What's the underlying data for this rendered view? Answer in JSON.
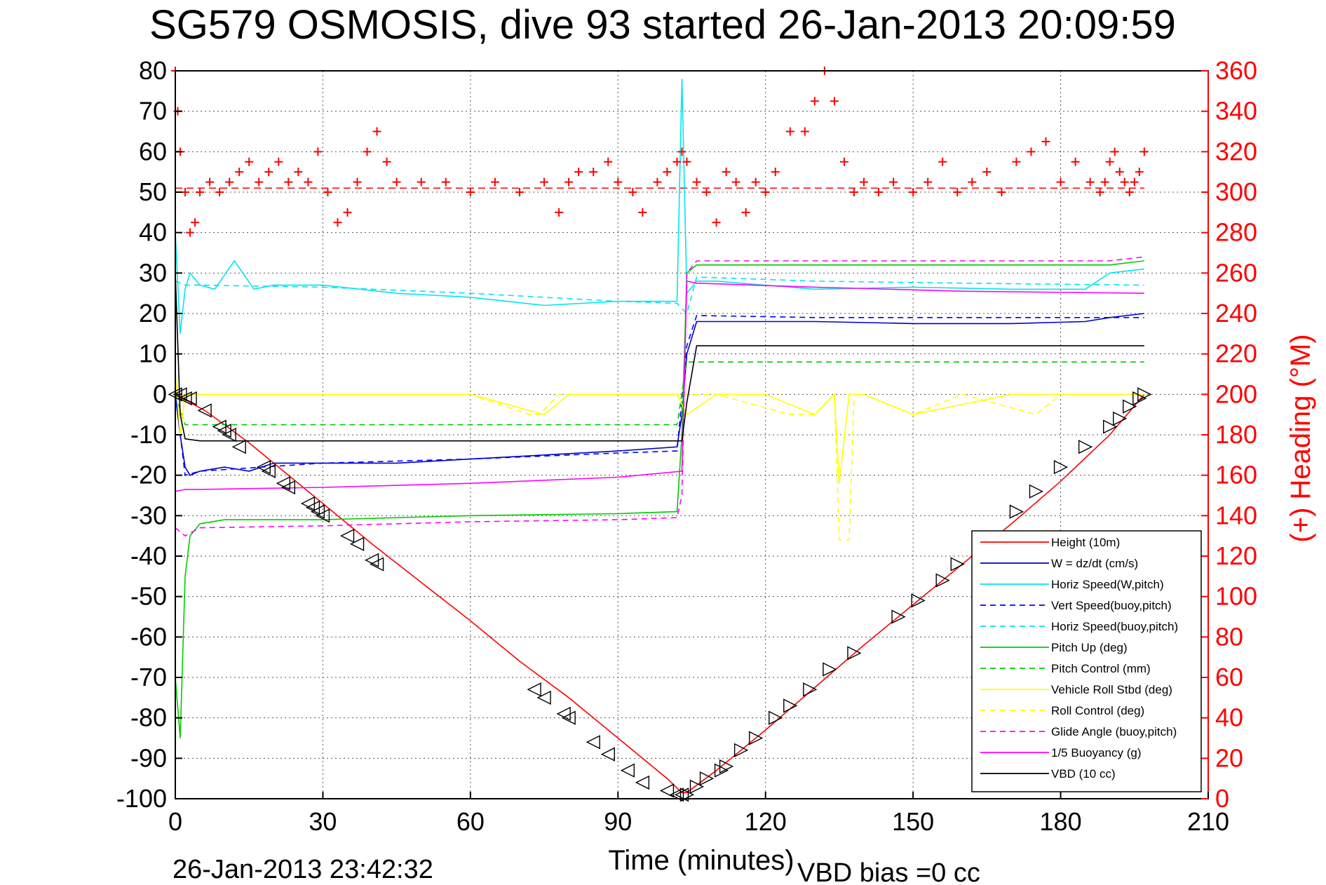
{
  "chart_data": {
    "type": "line",
    "title": "SG579 OSMOSIS, dive 93 started 26-Jan-2013 20:09:59",
    "xlabel": "Time (minutes)",
    "ylabel_right": "(+) Heading (°M)",
    "footer_left": "26-Jan-2013 23:42:32",
    "footer_right": "VBD bias =0 cc",
    "xlim": [
      0,
      210
    ],
    "ylim": [
      -100,
      80
    ],
    "ylim_right": [
      0,
      360
    ],
    "x_ticks": [
      "0",
      "30",
      "60",
      "90",
      "120",
      "150",
      "180",
      "210"
    ],
    "y_ticks": [
      "80",
      "70",
      "60",
      "50",
      "40",
      "30",
      "20",
      "10",
      "0",
      "-10",
      "-20",
      "-30",
      "-40",
      "-50",
      "-60",
      "-70",
      "-80",
      "-90",
      "-100"
    ],
    "y_ticks_right": [
      "360",
      "340",
      "320",
      "300",
      "280",
      "260",
      "240",
      "220",
      "200",
      "180",
      "160",
      "140",
      "120",
      "100",
      "80",
      "60",
      "40",
      "20",
      "0"
    ],
    "grid": true,
    "legend_position": "bottom-right",
    "colors": {
      "red": "#ff0000",
      "blue": "#0000cc",
      "cyan": "#00e5ee",
      "green": "#00cc00",
      "yellow": "#ffff00",
      "magenta": "#ff00ff",
      "black": "#000000"
    },
    "series": [
      {
        "name": "Height (10m)",
        "color": "#ff0000",
        "dash": false,
        "x": [
          0,
          1,
          3,
          6,
          10,
          15,
          20,
          25,
          30,
          40,
          50,
          60,
          70,
          80,
          90,
          100,
          103,
          104,
          110,
          120,
          130,
          140,
          150,
          160,
          170,
          180,
          190,
          197
        ],
        "y": [
          0,
          -0.5,
          -2,
          -4,
          -7.5,
          -12,
          -17,
          -22,
          -27,
          -37,
          -46.5,
          -56,
          -66,
          -75,
          -85,
          -95,
          -98.5,
          -98.5,
          -93,
          -83,
          -72.5,
          -62,
          -52,
          -42,
          -32,
          -21.5,
          -10,
          0
        ]
      },
      {
        "name": "W = dz/dt (cm/s)",
        "color": "#0000cc",
        "dash": false,
        "x": [
          0,
          1,
          2,
          3,
          5,
          10,
          15,
          20,
          30,
          45,
          60,
          75,
          90,
          102,
          103,
          104,
          106,
          110,
          130,
          150,
          170,
          185,
          190,
          197
        ],
        "y": [
          0,
          -10,
          -18,
          -20,
          -19,
          -18,
          -19,
          -17,
          -17,
          -17,
          -16,
          -15,
          -14,
          -13,
          -5,
          10,
          18,
          18,
          18,
          17.5,
          17.5,
          18,
          19,
          20
        ]
      },
      {
        "name": "Horiz Speed(W,pitch)",
        "color": "#00e5ee",
        "dash": false,
        "x": [
          0,
          1,
          2,
          3,
          5,
          8,
          12,
          16,
          20,
          30,
          45,
          60,
          75,
          90,
          102,
          103,
          104,
          106,
          110,
          130,
          150,
          170,
          185,
          190,
          197
        ],
        "y": [
          40,
          15,
          26,
          30,
          27,
          26,
          33,
          26,
          27,
          27,
          25,
          24,
          22,
          23,
          23,
          78,
          25,
          28,
          28,
          26,
          26.5,
          26,
          26,
          30,
          31
        ]
      },
      {
        "name": "Vert Speed(buoy,pitch)",
        "color": "#0000ff",
        "dash": true,
        "x": [
          0,
          2,
          5,
          30,
          60,
          90,
          102,
          104,
          106,
          130,
          160,
          197
        ],
        "y": [
          0,
          -20,
          -19,
          -17,
          -16,
          -14.5,
          -14,
          12,
          19.5,
          19,
          19,
          19
        ]
      },
      {
        "name": "Horiz Speed(buoy,pitch)",
        "color": "#00e5ee",
        "dash": true,
        "x": [
          0,
          2,
          5,
          30,
          60,
          90,
          102,
          104,
          106,
          130,
          160,
          197
        ],
        "y": [
          28,
          27,
          27,
          26.5,
          25,
          23,
          22.5,
          20,
          29,
          28,
          27.5,
          27
        ]
      },
      {
        "name": "Pitch Up (deg)",
        "color": "#00cc00",
        "dash": false,
        "x": [
          0,
          1,
          2,
          3,
          5,
          10,
          20,
          30,
          60,
          90,
          102,
          103,
          104,
          106,
          130,
          160,
          190,
          197
        ],
        "y": [
          -70,
          -85,
          -45,
          -35,
          -32,
          -31,
          -31,
          -31,
          -30,
          -29.5,
          -29,
          -10,
          30,
          32,
          32,
          32,
          32,
          33
        ]
      },
      {
        "name": "Pitch Control (mm)",
        "color": "#00cc00",
        "dash": true,
        "x": [
          0,
          2,
          5,
          60,
          102,
          104,
          106,
          197
        ],
        "y": [
          0,
          -7.5,
          -7.5,
          -7.5,
          -7.5,
          8,
          8,
          8
        ]
      },
      {
        "name": "Vehicle Roll Stbd (deg)",
        "color": "#ffff00",
        "dash": false,
        "x": [
          0,
          1,
          2,
          5,
          10,
          20,
          30,
          40,
          60,
          75,
          80,
          90,
          100,
          102,
          104,
          110,
          120,
          130,
          134,
          135,
          137,
          140,
          150,
          170,
          190,
          197
        ],
        "y": [
          5,
          -10,
          0,
          0,
          0,
          0,
          0,
          0,
          0,
          -5,
          0,
          0,
          0,
          0,
          -5,
          0,
          0,
          -5,
          0,
          -22,
          0,
          0,
          -5,
          0,
          0,
          0
        ]
      },
      {
        "name": "Roll Control (deg)",
        "color": "#ffff00",
        "dash": true,
        "x": [
          0,
          2,
          10,
          20,
          30,
          40,
          60,
          72,
          74,
          78,
          80,
          90,
          102,
          104,
          110,
          125,
          130,
          134,
          135,
          137,
          138,
          140,
          150,
          160,
          175,
          180,
          190,
          197
        ],
        "y": [
          0,
          0,
          0,
          0,
          0,
          0,
          0,
          -5,
          -5,
          0,
          0,
          0,
          0,
          0,
          0,
          -5,
          -5,
          0,
          -36,
          -36,
          0,
          0,
          -5,
          0,
          -5,
          0,
          0,
          0
        ]
      },
      {
        "name": "Glide Angle (buoy,pitch)",
        "color": "#ff00ff",
        "dash": true,
        "x": [
          0,
          2,
          5,
          30,
          60,
          90,
          102,
          103,
          104,
          106,
          130,
          160,
          190,
          197
        ],
        "y": [
          -33,
          -35,
          -33,
          -32.5,
          -31.5,
          -31,
          -30.5,
          -25,
          30,
          33,
          33,
          33,
          33,
          34
        ]
      },
      {
        "name": "1/5 Buoyancy (g)",
        "color": "#ff00ff",
        "dash": false,
        "x": [
          0,
          2,
          5,
          30,
          60,
          90,
          103,
          104,
          106,
          130,
          160,
          197
        ],
        "y": [
          -24,
          -23.5,
          -23.5,
          -23,
          -22,
          -20.5,
          -19,
          28,
          27.5,
          26.5,
          25.5,
          25
        ]
      },
      {
        "name": "VBD (10 cc)",
        "color": "#000000",
        "dash": false,
        "x": [
          0,
          1,
          2,
          5,
          30,
          60,
          90,
          103,
          104,
          106,
          130,
          197
        ],
        "y": [
          30,
          -5,
          -11,
          -11.5,
          -11.5,
          -11.5,
          -11.5,
          -11.5,
          -2,
          12,
          12,
          12
        ]
      }
    ],
    "heading_series": {
      "name": "Heading",
      "axis": "right",
      "color": "#ff0000",
      "marker": "+",
      "x": [
        0,
        0.5,
        1,
        2,
        3,
        4,
        5,
        7,
        9,
        11,
        13,
        15,
        17,
        19,
        21,
        23,
        25,
        27,
        29,
        31,
        33,
        35,
        37,
        39,
        41,
        43,
        45,
        50,
        55,
        60,
        65,
        70,
        75,
        78,
        80,
        82,
        85,
        88,
        90,
        93,
        95,
        98,
        100,
        102,
        103,
        104,
        106,
        108,
        110,
        112,
        114,
        116,
        118,
        120,
        122,
        125,
        128,
        130,
        132,
        134,
        136,
        138,
        140,
        143,
        146,
        150,
        153,
        156,
        159,
        162,
        165,
        168,
        171,
        174,
        177,
        180,
        183,
        186,
        188,
        189,
        190,
        191,
        192,
        193,
        194,
        195,
        196,
        197
      ],
      "y": [
        360,
        340,
        320,
        300,
        280,
        285,
        300,
        305,
        300,
        305,
        310,
        315,
        305,
        310,
        315,
        305,
        310,
        305,
        320,
        300,
        285,
        290,
        305,
        320,
        330,
        315,
        305,
        305,
        305,
        300,
        305,
        300,
        305,
        290,
        305,
        310,
        310,
        315,
        305,
        300,
        290,
        305,
        310,
        315,
        320,
        315,
        305,
        300,
        285,
        310,
        305,
        290,
        305,
        300,
        310,
        330,
        330,
        345,
        360,
        345,
        315,
        300,
        305,
        300,
        305,
        300,
        305,
        315,
        300,
        305,
        310,
        300,
        315,
        320,
        325,
        305,
        315,
        305,
        300,
        305,
        315,
        320,
        310,
        305,
        300,
        305,
        310,
        320
      ]
    },
    "heading_reference": {
      "value": 302,
      "style": "dashed",
      "color": "#ff0000"
    },
    "descent_markers": {
      "x": [
        0,
        1,
        2,
        3,
        6,
        9,
        10,
        11,
        13,
        18,
        19,
        22,
        23,
        27,
        28,
        29,
        30,
        35,
        37,
        40,
        41,
        73,
        75,
        79,
        80,
        85,
        88,
        92,
        95,
        100,
        102,
        103
      ],
      "y": [
        0,
        0,
        -1,
        -1,
        -4,
        -8,
        -9,
        -10,
        -13,
        -18,
        -19,
        -22,
        -23,
        -27,
        -28,
        -29,
        -30,
        -35,
        -37,
        -41,
        -42,
        -73,
        -75,
        -79,
        -80,
        -86,
        -89,
        -93,
        -96,
        -98,
        -99,
        -99
      ]
    },
    "ascent_markers": {
      "x": [
        104,
        106,
        108,
        111,
        112,
        115,
        118,
        122,
        125,
        129,
        133,
        138,
        147,
        151,
        156,
        159,
        171,
        175,
        180,
        185,
        190,
        192,
        194,
        196,
        197
      ],
      "y": [
        -99,
        -97,
        -95,
        -93,
        -92,
        -88,
        -85,
        -80,
        -77,
        -73,
        -68,
        -64,
        -55,
        -51,
        -46,
        -42,
        -29,
        -24,
        -18,
        -13,
        -8,
        -6,
        -3,
        -1,
        0
      ]
    },
    "legend": [
      {
        "label": "Height (10m)",
        "color": "#ff0000",
        "dash": false
      },
      {
        "label": "W = dz/dt (cm/s)",
        "color": "#0000cc",
        "dash": false
      },
      {
        "label": "Horiz Speed(W,pitch)",
        "color": "#00e5ee",
        "dash": false
      },
      {
        "label": "Vert Speed(buoy,pitch)",
        "color": "#0000ff",
        "dash": true
      },
      {
        "label": "Horiz Speed(buoy,pitch)",
        "color": "#00e5ee",
        "dash": true
      },
      {
        "label": "Pitch Up (deg)",
        "color": "#00cc00",
        "dash": false
      },
      {
        "label": "Pitch Control (mm)",
        "color": "#00cc00",
        "dash": true
      },
      {
        "label": "Vehicle Roll Stbd (deg)",
        "color": "#ffff00",
        "dash": false
      },
      {
        "label": "Roll Control (deg)",
        "color": "#ffff00",
        "dash": true
      },
      {
        "label": "Glide Angle (buoy,pitch)",
        "color": "#ff00ff",
        "dash": true
      },
      {
        "label": "1/5 Buoyancy (g)",
        "color": "#ff00ff",
        "dash": false
      },
      {
        "label": "VBD (10 cc)",
        "color": "#000000",
        "dash": false
      }
    ]
  }
}
